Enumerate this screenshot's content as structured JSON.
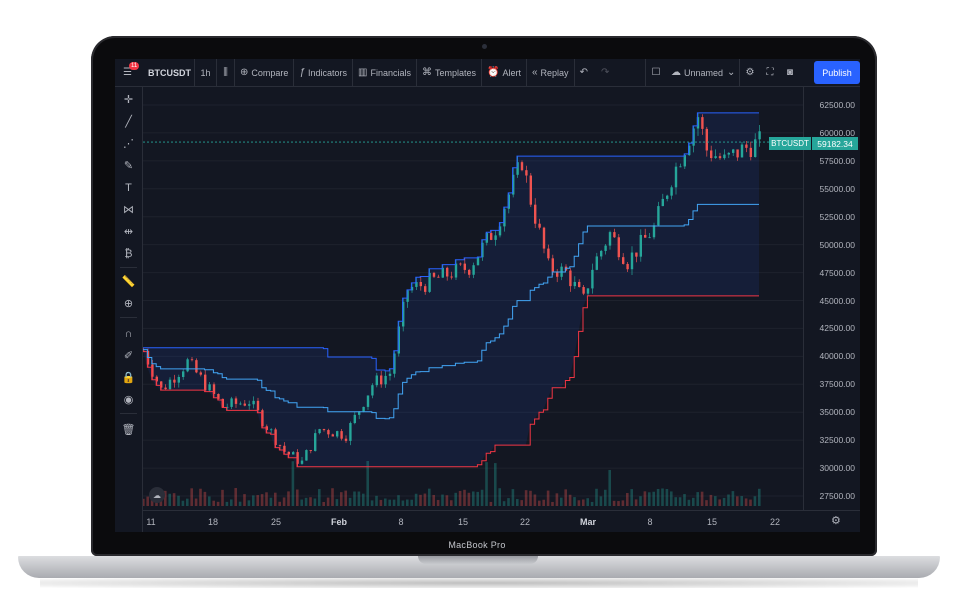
{
  "toolbar": {
    "notification_count": "11",
    "symbol": "BTCUSDT",
    "interval": "1h",
    "compare": "Compare",
    "indicators": "Indicators",
    "financials": "Financials",
    "templates": "Templates",
    "alert": "Alert",
    "replay": "Replay",
    "layout_name": "Unnamed",
    "publish": "Publish"
  },
  "device_label": "MacBook Pro",
  "price_axis": {
    "ticks": [
      "62500.00",
      "60000.00",
      "57500.00",
      "55000.00",
      "52500.00",
      "50000.00",
      "47500.00",
      "45000.00",
      "42500.00",
      "40000.00",
      "37500.00",
      "35000.00",
      "32500.00",
      "30000.00",
      "27500.00"
    ]
  },
  "time_axis": {
    "ticks": [
      "11",
      "18",
      "25",
      "Feb",
      "8",
      "15",
      "22",
      "Mar",
      "8",
      "15",
      "22"
    ]
  },
  "last_price": {
    "symbol": "BTCUSDT",
    "value": "59182.34"
  },
  "colors": {
    "up": "#26a69a",
    "down": "#ef5350",
    "upper_band": "#2962ff",
    "lower_band": "#f23645",
    "basis": "#42a5f5",
    "background": "#131722"
  },
  "chart_data": {
    "type": "line",
    "symbol": "BTCUSDT",
    "interval": "1h",
    "x": [
      "Jan 9",
      "Jan 11",
      "Jan 14",
      "Jan 18",
      "Jan 21",
      "Jan 25",
      "Jan 27",
      "Jan 29",
      "Feb 1",
      "Feb 4",
      "Feb 6",
      "Feb 8",
      "Feb 10",
      "Feb 13",
      "Feb 15",
      "Feb 18",
      "Feb 21",
      "Feb 22",
      "Feb 24",
      "Feb 26",
      "Feb 28",
      "Mar 1",
      "Mar 3",
      "Mar 5",
      "Mar 8",
      "Mar 10",
      "Mar 13",
      "Mar 14",
      "Mar 16",
      "Mar 18",
      "Mar 20"
    ],
    "series": [
      {
        "values": [
          40500,
          37000,
          39500,
          35500,
          36000,
          31500,
          30500,
          33500,
          33000,
          37500,
          38500,
          46000,
          46500,
          47500,
          48000,
          51500,
          57500,
          54000,
          48000,
          47500,
          45000,
          48000,
          51000,
          48500,
          51500,
          56000,
          61500,
          58500,
          57500,
          58500,
          59182
        ]
      }
    ],
    "ylim": [
      25000,
      63500
    ],
    "xlim": [
      "Jan 9",
      "Mar 23"
    ]
  }
}
